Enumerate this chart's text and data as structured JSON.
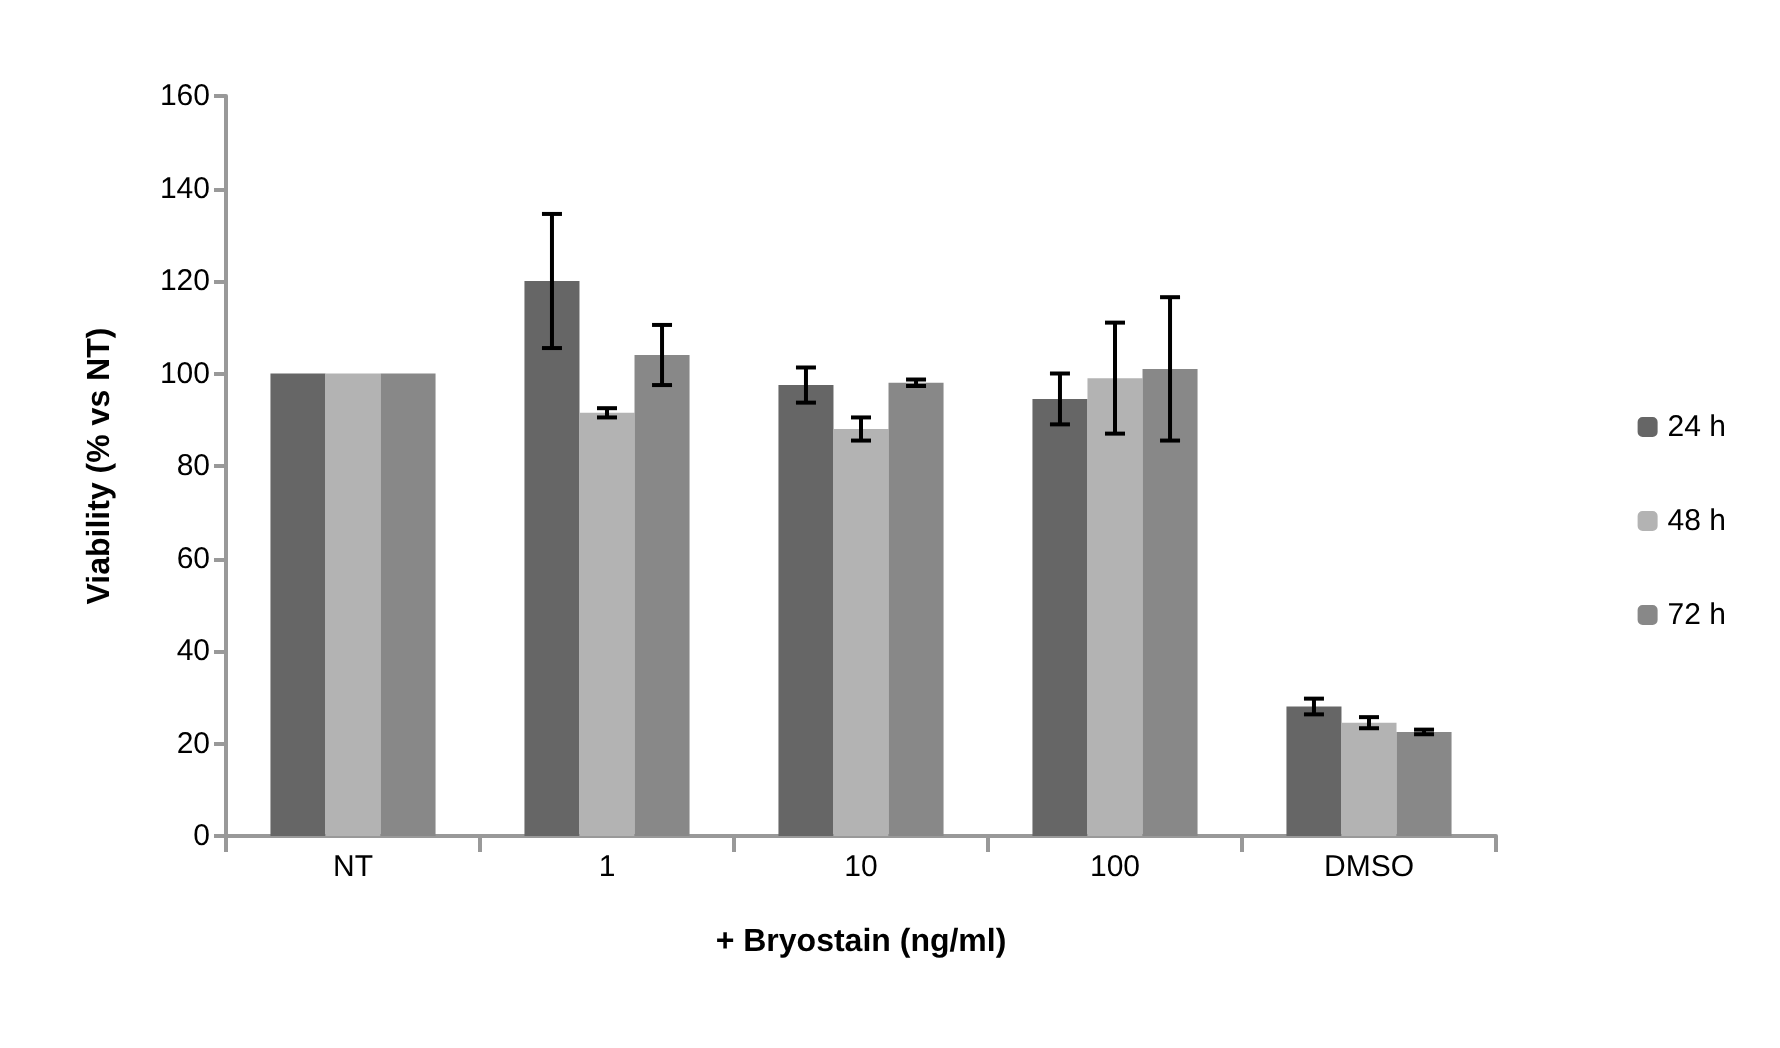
{
  "chart_data": {
    "type": "bar",
    "xlabel": "+ Bryostain (ng/ml)",
    "ylabel": "Viability (% vs NT)",
    "categories": [
      "NT",
      "1",
      "10",
      "100",
      "DMSO"
    ],
    "series": [
      {
        "name": "24 h",
        "color": "#666666",
        "values": [
          100,
          120,
          97.5,
          94.5,
          28
        ],
        "errors": [
          null,
          14.5,
          3.8,
          5.5,
          1.7
        ]
      },
      {
        "name": "48 h",
        "color": "#b3b3b3",
        "values": [
          100,
          91.5,
          88,
          99,
          24.5
        ],
        "errors": [
          null,
          1,
          2.5,
          12,
          1.2
        ]
      },
      {
        "name": "72 h",
        "color": "#888888",
        "values": [
          100,
          104,
          98,
          101,
          22.5
        ],
        "errors": [
          null,
          6.5,
          0.7,
          15.5,
          0.5
        ]
      }
    ],
    "ylim": [
      0,
      160
    ],
    "yticks": [
      0,
      20,
      40,
      60,
      80,
      100,
      120,
      140,
      160
    ],
    "grid": false,
    "legend": "right"
  }
}
